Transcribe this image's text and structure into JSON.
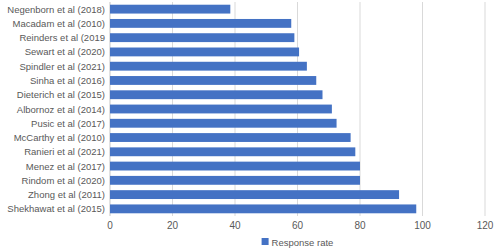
{
  "chart_data": {
    "type": "bar",
    "orientation": "horizontal",
    "categories": [
      "Negenborn et al (2018)",
      "Macadam et al (2010)",
      "Reinders et al (2019",
      "Sewart et al (2020)",
      "Spindler et al (2021)",
      "Sinha et al (2016)",
      "Dieterich et al (2015)",
      "Albornoz et al (2014)",
      "Pusic et al (2017)",
      "McCarthy et al (2010)",
      "Ranieri et al (2021)",
      "Menez et al (2017)",
      "Rindom et al (2020)",
      "Zhong et al (2011)",
      "Shekhawat et al (2015)"
    ],
    "series": [
      {
        "name": "Response rate",
        "color": "#4472c4",
        "values": [
          38.5,
          58,
          59,
          60.5,
          63,
          66,
          68,
          71,
          72.5,
          77,
          78.5,
          80,
          80,
          92.5,
          98
        ]
      }
    ],
    "xlim": [
      0,
      120
    ],
    "xticks": [
      0,
      20,
      40,
      60,
      80,
      100,
      120
    ],
    "grid": true,
    "legend": "bottom"
  }
}
